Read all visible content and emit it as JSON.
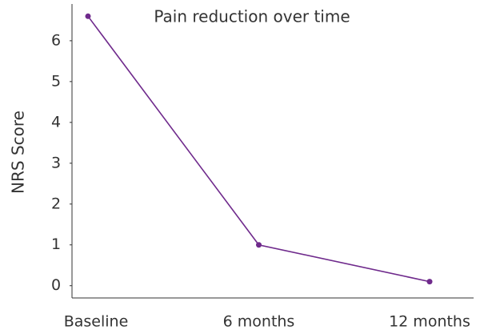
{
  "chart_data": {
    "type": "line",
    "title": "Pain reduction over time",
    "y_label": "NRS Score",
    "categories": [
      "Baseline",
      "6 months",
      "12 months"
    ],
    "series": [
      {
        "name": "NRS Score",
        "color": "#6f2a8c",
        "values": [
          6.6,
          1.0,
          0.1
        ]
      }
    ],
    "ylim": [
      -0.3,
      6.9
    ],
    "yticks": [
      0,
      1,
      2,
      3,
      4,
      5,
      6
    ]
  }
}
